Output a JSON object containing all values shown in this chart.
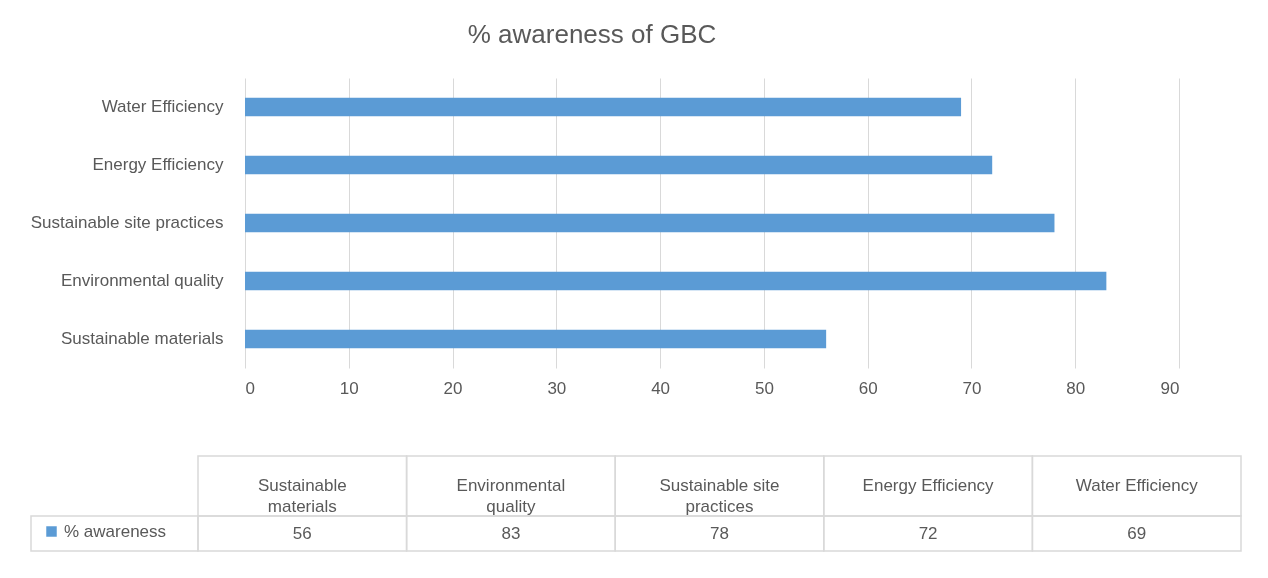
{
  "chart_data": [
    {
      "type": "bar",
      "orientation": "horizontal",
      "title": "% awareness of GBC",
      "categories": [
        "Water Efficiency",
        "Energy Efficiency",
        "Sustainable site practices",
        "Environmental quality",
        "Sustainable materials"
      ],
      "series": [
        {
          "color": "#5b9bd5",
          "values": [
            69,
            72,
            78,
            83,
            56
          ]
        }
      ],
      "xlim": [
        0,
        90
      ],
      "xticks": [
        0,
        10,
        20,
        30,
        40,
        50,
        60,
        70,
        80,
        90
      ],
      "grid": "x"
    },
    {
      "type": "other",
      "categories": [
        "Sustainable materials",
        "Environmental quality",
        "Sustainable site practices",
        "Energy Efficiency",
        "Water Efficiency"
      ],
      "series": [
        {
          "name": "% awareness",
          "color": "#5b9bd5",
          "values": [
            56,
            83,
            78,
            72,
            69
          ]
        }
      ],
      "legend": "left",
      "data_labels": true
    }
  ]
}
